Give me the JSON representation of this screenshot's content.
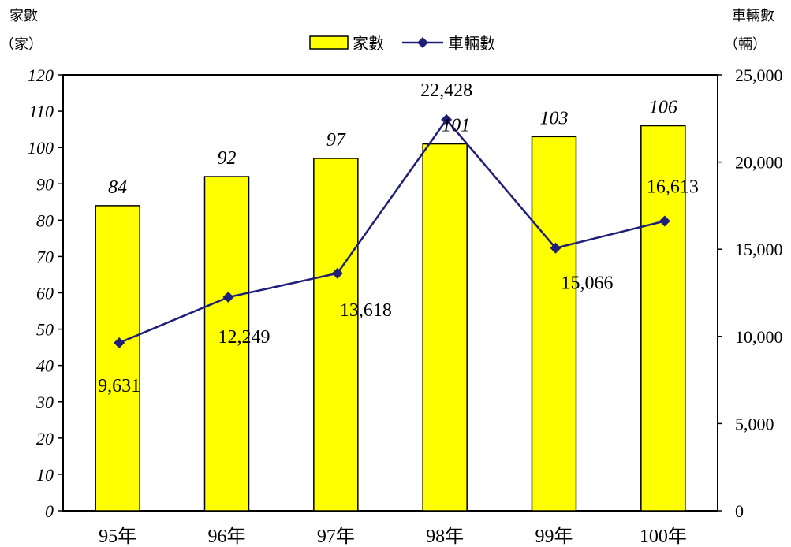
{
  "chart_data": {
    "type": "bar",
    "categories": [
      "95年",
      "96年",
      "97年",
      "98年",
      "99年",
      "100年"
    ],
    "series": [
      {
        "name": "家數",
        "kind": "bar",
        "axis": "left",
        "color": "#ffff00",
        "values": [
          84,
          92,
          97,
          101,
          103,
          106
        ],
        "labels": [
          "84",
          "92",
          "97",
          "101",
          "103",
          "106"
        ]
      },
      {
        "name": "車輛數",
        "kind": "line",
        "axis": "right",
        "color": "#1f1f7a",
        "values": [
          9631,
          12249,
          13618,
          22428,
          15066,
          16613
        ],
        "labels": [
          "9,631",
          "12,249",
          "13,618",
          "22,428",
          "15,066",
          "16,613"
        ]
      }
    ],
    "left_axis": {
      "title_line1": "家數",
      "title_line2": "（家）",
      "ylim": [
        0,
        120
      ],
      "ticks": [
        "0",
        "10",
        "20",
        "30",
        "40",
        "50",
        "60",
        "70",
        "80",
        "90",
        "100",
        "110",
        "120"
      ]
    },
    "right_axis": {
      "title_line1": "車輛數",
      "title_line2": "（輛）",
      "ylim": [
        0,
        25000
      ],
      "ticks": [
        "0",
        "5,000",
        "10,000",
        "15,000",
        "20,000",
        "25,000"
      ]
    },
    "legend_position": "top-center",
    "grid": false
  }
}
